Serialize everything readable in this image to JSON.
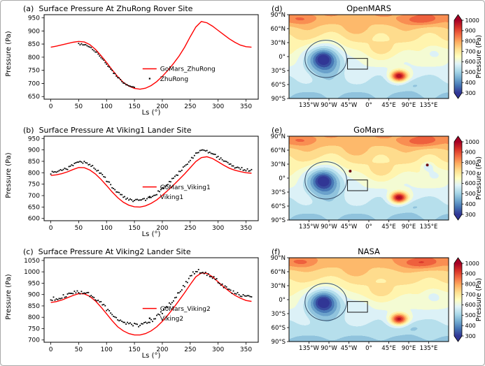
{
  "figure": {
    "background": "#ffffff",
    "border_color": "#a9a9a9"
  },
  "colormap": [
    "#313695",
    "#4575b4",
    "#74add1",
    "#abd9e9",
    "#e0f3f8",
    "#ffffbf",
    "#fee090",
    "#fdae61",
    "#f46d43",
    "#d73027",
    "#a50026"
  ],
  "chart_data": [
    {
      "type": "line",
      "panel": "(a)",
      "title": "Surface Pressure At ZhuRong Rover Site",
      "xlabel": "Ls (°)",
      "ylabel": "Pressure (Pa)",
      "xlim": [
        -12,
        372
      ],
      "ylim": [
        640,
        962
      ],
      "xticks": [
        0,
        50,
        100,
        150,
        200,
        250,
        300,
        350
      ],
      "yticks": [
        650,
        700,
        750,
        800,
        850,
        900,
        950
      ],
      "legend": {
        "fx": 0.46,
        "fy": 0.64
      },
      "series": [
        {
          "name": "GoMars_ZhuRong",
          "kind": "line",
          "color": "#ff0000",
          "ls_start": 0,
          "ls_step": 10,
          "pressure": [
            838,
            842,
            847,
            852,
            857,
            860,
            858,
            848,
            830,
            806,
            780,
            752,
            726,
            704,
            690,
            681,
            678,
            682,
            692,
            707,
            727,
            750,
            776,
            804,
            838,
            878,
            915,
            936,
            931,
            918,
            902,
            886,
            870,
            857,
            846,
            840,
            838
          ]
        },
        {
          "name": "ZhuRong",
          "kind": "scatter",
          "color": "#000000",
          "scatter": 3,
          "ls_start": 50,
          "ls_step": 10,
          "pressure": [
            850,
            847,
            838,
            822,
            800,
            773,
            747,
            723,
            704,
            692,
            686
          ]
        }
      ]
    },
    {
      "type": "line",
      "panel": "(b)",
      "title": "Surface Pressure At Viking1 Lander Site",
      "xlabel": "Ls (°)",
      "ylabel": "Pressure (Pa)",
      "xlim": [
        -12,
        372
      ],
      "ylim": [
        590,
        960
      ],
      "xticks": [
        0,
        50,
        100,
        150,
        200,
        250,
        300,
        350
      ],
      "yticks": [
        600,
        650,
        700,
        750,
        800,
        850,
        900,
        950
      ],
      "legend": {
        "fx": 0.46,
        "fy": 0.6
      },
      "series": [
        {
          "name": "GoMars_Viking1",
          "kind": "line",
          "color": "#ff0000",
          "ls_start": 0,
          "ls_step": 10,
          "pressure": [
            788,
            791,
            796,
            804,
            814,
            823,
            822,
            812,
            795,
            771,
            744,
            716,
            691,
            671,
            658,
            651,
            650,
            655,
            666,
            681,
            701,
            723,
            746,
            770,
            795,
            822,
            849,
            866,
            870,
            862,
            848,
            833,
            820,
            811,
            805,
            800,
            798
          ]
        },
        {
          "name": "Viking1",
          "kind": "scatter",
          "color": "#000000",
          "scatter": 6,
          "ls_start": 0,
          "ls_step": 10,
          "pressure": [
            800,
            804,
            810,
            820,
            832,
            845,
            845,
            835,
            818,
            795,
            768,
            740,
            713,
            694,
            683,
            678,
            678,
            683,
            694,
            710,
            731,
            753,
            777,
            801,
            826,
            854,
            882,
            897,
            895,
            884,
            868,
            851,
            837,
            826,
            818,
            813,
            812
          ]
        }
      ]
    },
    {
      "type": "line",
      "panel": "(c)",
      "title": "Surface Pressure At Viking2 Lander Site",
      "xlabel": "Ls (°)",
      "ylabel": "Pressure (Pa)",
      "xlim": [
        -12,
        372
      ],
      "ylim": [
        690,
        1062
      ],
      "xticks": [
        0,
        50,
        100,
        150,
        200,
        250,
        300,
        350
      ],
      "yticks": [
        700,
        750,
        800,
        850,
        900,
        950,
        1000,
        1050
      ],
      "legend": {
        "fx": 0.46,
        "fy": 0.6
      },
      "series": [
        {
          "name": "GoMars_Viking2",
          "kind": "line",
          "color": "#ff0000",
          "ls_start": 0,
          "ls_step": 10,
          "pressure": [
            865,
            869,
            876,
            886,
            896,
            904,
            903,
            892,
            872,
            845,
            815,
            785,
            758,
            740,
            728,
            722,
            722,
            728,
            740,
            758,
            782,
            810,
            841,
            874,
            908,
            944,
            978,
            995,
            993,
            978,
            956,
            934,
            914,
            897,
            884,
            874,
            870
          ]
        },
        {
          "name": "Viking2",
          "kind": "scatter",
          "color": "#000000",
          "scatter": 8,
          "ls_start": 0,
          "ls_step": 10,
          "pressure": [
            880,
            884,
            890,
            898,
            906,
            911,
            909,
            899,
            884,
            862,
            837,
            812,
            791,
            776,
            768,
            765,
            766,
            773,
            785,
            802,
            824,
            850,
            878,
            908,
            940,
            978,
            1005,
            1000,
            990,
            976,
            957,
            937,
            920,
            906,
            896,
            890,
            888
          ]
        }
      ]
    },
    {
      "type": "heatmap",
      "panel": "(d)",
      "title": "OpenMARS",
      "lon_range": [
        -180,
        180
      ],
      "lat_range": [
        -90,
        90
      ],
      "xticks": [
        -135,
        -90,
        -45,
        0,
        45,
        90,
        135
      ],
      "xtick_labels": [
        "135°W",
        "90°W",
        "45°W",
        "0°",
        "45°E",
        "90°E",
        "135°E"
      ],
      "yticks": [
        90,
        60,
        30,
        0,
        -30,
        -60,
        -90
      ],
      "ytick_labels": [
        "90°N",
        "60°N",
        "30°N",
        "0°",
        "30°S",
        "60°S",
        "90°S"
      ],
      "colorbar": {
        "label": "Pressure (Pa)",
        "min": 300,
        "max": 1000,
        "band_step": 50,
        "ticks": [
          300,
          400,
          500,
          600,
          700,
          800,
          900,
          1000
        ]
      },
      "overlays": {
        "ellipse": {
          "lon": -97,
          "lat": -5,
          "rlon": 47,
          "rlat": 40
        },
        "rect": {
          "lon_min": -48,
          "lon_max": -3,
          "lat_min": -27,
          "lat_max": -4
        }
      },
      "field": {
        "base": {
          "a": 635,
          "b": 152
        },
        "wave": {
          "amp": 22,
          "lon_period": 55,
          "lat_period": 48
        },
        "features": [
          {
            "lon": -100,
            "lat": -6,
            "slon": 36,
            "slat": 29,
            "amp": -335
          },
          {
            "lon": -103,
            "lat": -5,
            "slon": 15,
            "slat": 12,
            "amp": -85
          },
          {
            "lon": 68,
            "lat": -42,
            "slon": 19,
            "slat": 12,
            "amp": 420
          },
          {
            "lon": 115,
            "lat": 79,
            "slon": 48,
            "slat": 13,
            "amp": 115
          },
          {
            "lon": -150,
            "lat": 80,
            "slon": 32,
            "slat": 12,
            "amp": 90
          },
          {
            "lon": 28,
            "lat": 16,
            "slon": 38,
            "slat": 18,
            "amp": 50
          },
          {
            "lon": 145,
            "lat": 8,
            "slon": 22,
            "slat": 15,
            "amp": -75
          },
          {
            "lon": 95,
            "lat": -58,
            "slon": 28,
            "slat": 12,
            "amp": -45
          },
          {
            "lon": -30,
            "lat": 62,
            "slon": 25,
            "slat": 12,
            "amp": 40
          }
        ]
      },
      "markers": []
    },
    {
      "type": "heatmap",
      "panel": "(e)",
      "title": "GoMars",
      "lon_range": [
        -180,
        180
      ],
      "lat_range": [
        -90,
        90
      ],
      "xticks": [
        -135,
        -90,
        -45,
        0,
        45,
        90,
        135
      ],
      "xtick_labels": [
        "135°W",
        "90°W",
        "45°W",
        "0°",
        "45°E",
        "90°E",
        "135°E"
      ],
      "yticks": [
        90,
        60,
        30,
        0,
        -30,
        -60,
        -90
      ],
      "ytick_labels": [
        "90°N",
        "60°N",
        "30°N",
        "0°",
        "30°S",
        "60°S",
        "90°S"
      ],
      "colorbar": {
        "label": "Pressure (Pa)",
        "min": 300,
        "max": 1000,
        "band_step": 50,
        "ticks": [
          300,
          400,
          500,
          600,
          700,
          800,
          900,
          1000
        ]
      },
      "overlays": {
        "ellipse": {
          "lon": -97,
          "lat": -5,
          "rlon": 47,
          "rlat": 40
        },
        "rect": {
          "lon_min": -48,
          "lon_max": -3,
          "lat_min": -27,
          "lat_max": -4
        }
      },
      "field": {
        "base": {
          "a": 635,
          "b": 152
        },
        "wave": {
          "amp": 22,
          "lon_period": 55,
          "lat_period": 48
        },
        "features": [
          {
            "lon": -100,
            "lat": -6,
            "slon": 36,
            "slat": 29,
            "amp": -335
          },
          {
            "lon": -103,
            "lat": -5,
            "slon": 15,
            "slat": 12,
            "amp": -85
          },
          {
            "lon": 68,
            "lat": -42,
            "slon": 19,
            "slat": 12,
            "amp": 430
          },
          {
            "lon": 115,
            "lat": 79,
            "slon": 48,
            "slat": 13,
            "amp": 115
          },
          {
            "lon": -150,
            "lat": 80,
            "slon": 32,
            "slat": 12,
            "amp": 90
          },
          {
            "lon": 28,
            "lat": 16,
            "slon": 38,
            "slat": 18,
            "amp": 50
          },
          {
            "lon": 145,
            "lat": 8,
            "slon": 22,
            "slat": 15,
            "amp": -75
          },
          {
            "lon": 95,
            "lat": -58,
            "slon": 28,
            "slat": 12,
            "amp": -45
          },
          {
            "lon": -30,
            "lat": 62,
            "slon": 25,
            "slat": 12,
            "amp": 40
          },
          {
            "lon": 133,
            "lat": 25,
            "slon": 13,
            "slat": 9,
            "amp": -110
          }
        ]
      },
      "markers": [
        {
          "lon": -42,
          "lat": 15
        },
        {
          "lon": 132,
          "lat": 28
        }
      ]
    },
    {
      "type": "heatmap",
      "panel": "(f)",
      "title": "NASA",
      "lon_range": [
        -180,
        180
      ],
      "lat_range": [
        -90,
        90
      ],
      "xticks": [
        -135,
        -90,
        -45,
        0,
        45,
        90,
        135
      ],
      "xtick_labels": [
        "135°W",
        "90°W",
        "45°W",
        "0°",
        "45°E",
        "90°E",
        "135°E"
      ],
      "yticks": [
        90,
        60,
        30,
        0,
        -30,
        -60,
        -90
      ],
      "ytick_labels": [
        "90°N",
        "60°N",
        "30°N",
        "0°",
        "30°S",
        "60°S",
        "90°S"
      ],
      "colorbar": {
        "label": "Pressure (Pa)",
        "min": 300,
        "max": 1000,
        "band_step": 50,
        "ticks": [
          300,
          400,
          500,
          600,
          700,
          800,
          900,
          1000
        ]
      },
      "overlays": {
        "ellipse": {
          "lon": -97,
          "lat": -5,
          "rlon": 47,
          "rlat": 40
        },
        "rect": {
          "lon_min": -48,
          "lon_max": -3,
          "lat_min": -27,
          "lat_max": -4
        }
      },
      "field": {
        "base": {
          "a": 635,
          "b": 152
        },
        "wave": {
          "amp": 15,
          "lon_period": 55,
          "lat_period": 48
        },
        "features": [
          {
            "lon": -100,
            "lat": -6,
            "slon": 36,
            "slat": 29,
            "amp": -335
          },
          {
            "lon": -103,
            "lat": -5,
            "slon": 15,
            "slat": 12,
            "amp": -85
          },
          {
            "lon": 68,
            "lat": -42,
            "slon": 19,
            "slat": 12,
            "amp": 400
          },
          {
            "lon": 115,
            "lat": 79,
            "slon": 48,
            "slat": 13,
            "amp": 130
          },
          {
            "lon": -150,
            "lat": 80,
            "slon": 32,
            "slat": 12,
            "amp": 95
          },
          {
            "lon": 28,
            "lat": 16,
            "slon": 38,
            "slat": 18,
            "amp": 50
          },
          {
            "lon": 145,
            "lat": 8,
            "slon": 22,
            "slat": 15,
            "amp": -75
          },
          {
            "lon": 95,
            "lat": -58,
            "slon": 28,
            "slat": 12,
            "amp": -45
          },
          {
            "lon": -30,
            "lat": 62,
            "slon": 25,
            "slat": 12,
            "amp": 40
          },
          {
            "lon": -20,
            "lat": -15,
            "slon": 25,
            "slat": 15,
            "amp": -35
          }
        ]
      },
      "markers": []
    }
  ]
}
